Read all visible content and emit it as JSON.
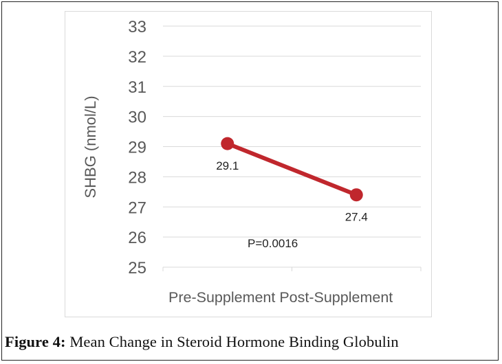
{
  "caption": {
    "label": "Figure 4:",
    "text": " Mean Change in Steroid Hormone Binding Globulin"
  },
  "chart_data": {
    "type": "line",
    "categories": [
      "Pre-Supplement",
      "Post-Supplement"
    ],
    "series": [
      {
        "values": [
          29.1,
          27.4
        ],
        "color": "#c0272d"
      }
    ],
    "data_labels": [
      "29.1",
      "27.4"
    ],
    "ylabel": "SHBG (nmol/L)",
    "xlabel": "",
    "ylim": [
      25,
      33
    ],
    "yticks": [
      25,
      26,
      27,
      28,
      29,
      30,
      31,
      32,
      33
    ],
    "grid": true,
    "annotations": [
      {
        "text": "P=0.0016"
      }
    ],
    "colors": {
      "series": "#c0272d",
      "grid": "#d9d9d9",
      "axis_text": "#595959",
      "label_text": "#222222"
    }
  }
}
